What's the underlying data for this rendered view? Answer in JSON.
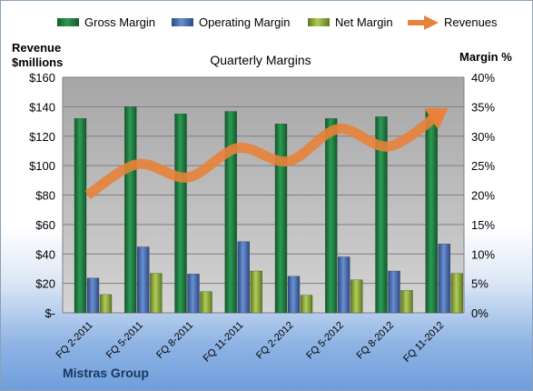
{
  "chart_data": {
    "type": "bar",
    "title": "Quarterly Margins",
    "categories": [
      "FQ 2-2011",
      "FQ 5-2011",
      "FQ 8-2011",
      "FQ 11-2011",
      "FQ 2-2012",
      "FQ 5-2012",
      "FQ 8-2012",
      "FQ 11-2012"
    ],
    "series": [
      {
        "name": "Gross Margin",
        "axis": "right",
        "color": "#1f7a3e",
        "values": [
          33,
          35,
          33.8,
          34.2,
          32.1,
          33,
          33.3,
          34.4
        ]
      },
      {
        "name": "Operating Margin",
        "axis": "right",
        "color": "#4a6fb0",
        "values": [
          5.9,
          11.2,
          6.6,
          12.1,
          6.2,
          9.5,
          7.1,
          11.7
        ]
      },
      {
        "name": "Net Margin",
        "axis": "right",
        "color": "#8fae3a",
        "values": [
          3.1,
          6.7,
          3.6,
          7.1,
          3.0,
          5.6,
          3.8,
          6.7
        ]
      },
      {
        "name": "Revenues",
        "axis": "left",
        "type": "arrow-line",
        "color": "#e8823a",
        "values": [
          80,
          101,
          92,
          112,
          103,
          125,
          113,
          135
        ]
      }
    ],
    "y_left": {
      "label_line1": "Revenue",
      "label_line2": "$millions",
      "min": 0,
      "max": 160,
      "ticks": [
        "$-",
        "$20",
        "$40",
        "$60",
        "$80",
        "$100",
        "$120",
        "$140",
        "$160"
      ]
    },
    "y_right": {
      "label": "Margin %",
      "min": 0,
      "max": 40,
      "ticks": [
        "0%",
        "5%",
        "10%",
        "15%",
        "20%",
        "25%",
        "30%",
        "35%",
        "40%"
      ]
    },
    "grid": true,
    "legend_position": "top"
  },
  "footer": {
    "company": "Mistras Group"
  },
  "colors": {
    "plot_bg": "#c0c0c0",
    "gridline": "#7f7f7f"
  }
}
